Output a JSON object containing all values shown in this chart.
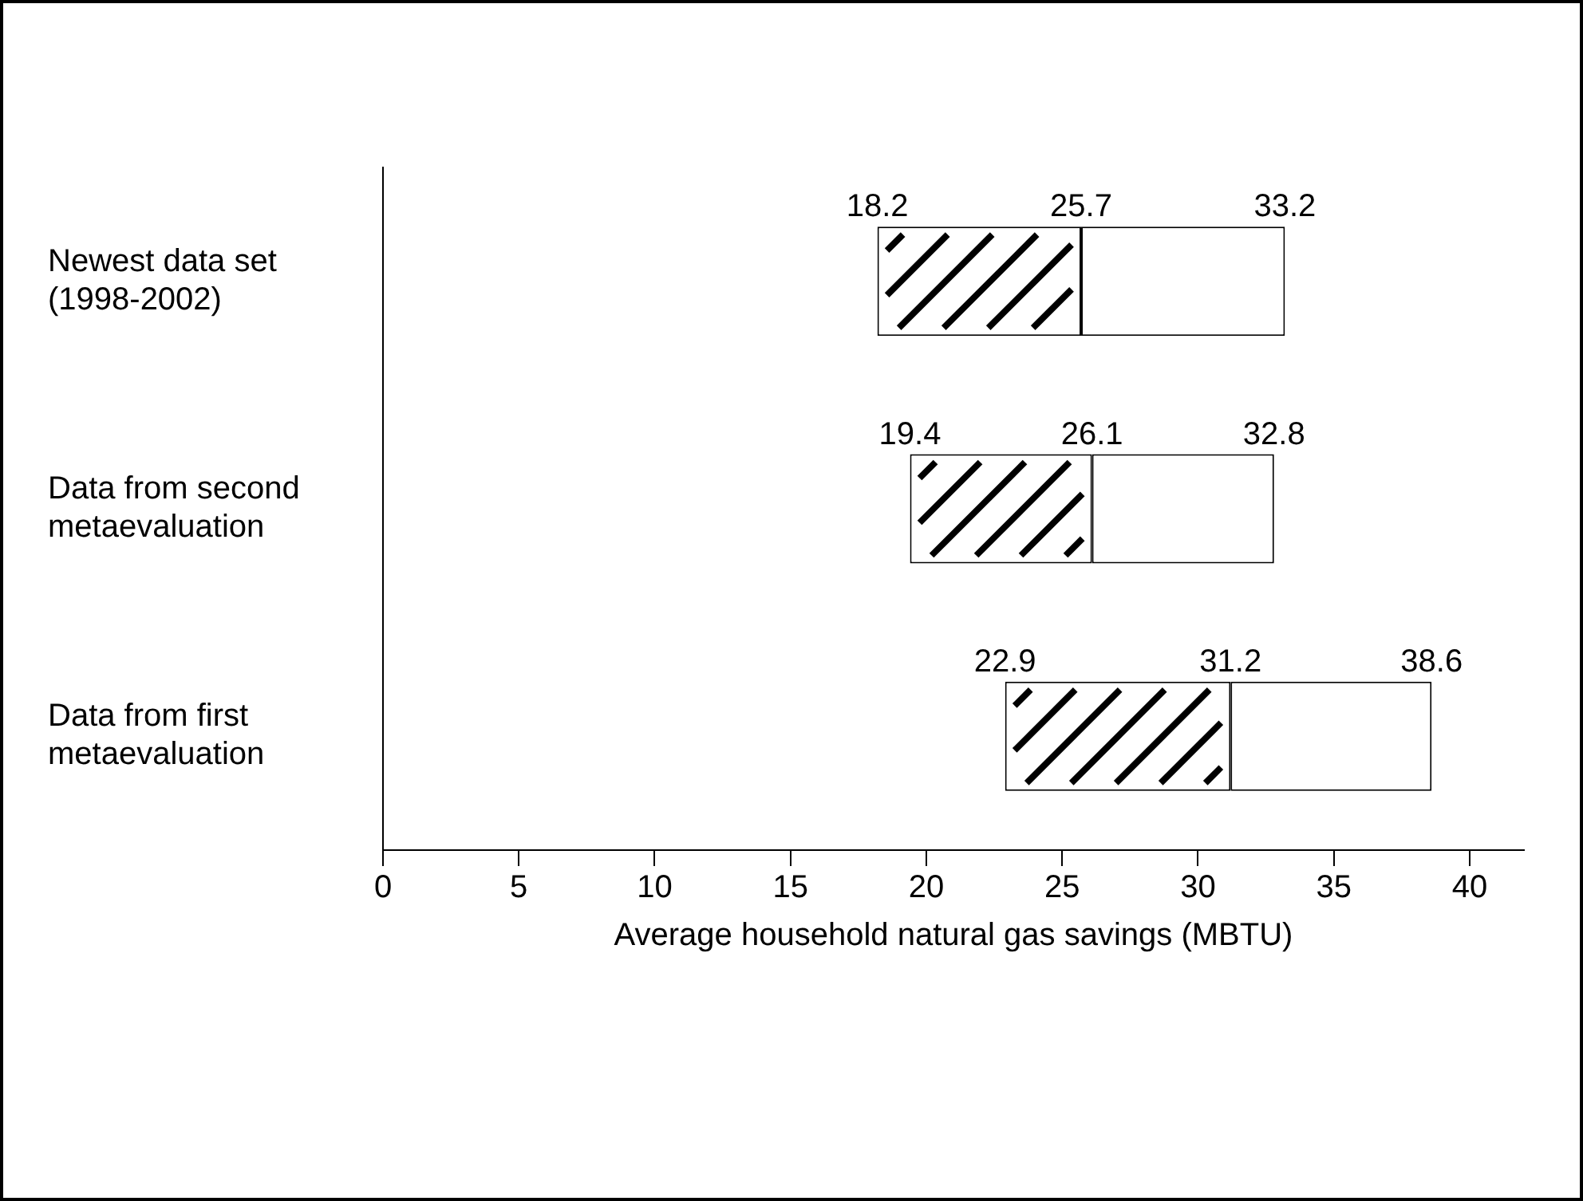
{
  "chart_data": {
    "type": "bar",
    "orientation": "horizontal",
    "xlabel": "Average household natural gas savings (MBTU)",
    "categories": [
      "Newest data set (1998-2002)",
      "Data from second metaevaluation",
      "Data from first metaevaluation"
    ],
    "series": [
      {
        "color": "#ffffff",
        "base": [
          18.2,
          19.4,
          22.9
        ],
        "values": [
          7.5,
          6.7,
          8.3
        ]
      },
      {
        "color": "#ffffff",
        "base": [
          25.7,
          26.1,
          31.2
        ],
        "values": [
          7.5,
          6.7,
          7.4
        ]
      }
    ],
    "xlim": [
      0,
      42
    ],
    "xticks": [
      0,
      5,
      10,
      15,
      20,
      25,
      30,
      35,
      40
    ],
    "grid": false,
    "legend": false,
    "annotations": [
      {
        "text": "18.2",
        "x": 18.2,
        "y": "Newest data set (1998-2002)"
      },
      {
        "text": "25.7",
        "x": 25.7,
        "y": "Newest data set (1998-2002)"
      },
      {
        "text": "33.2",
        "x": 33.2,
        "y": "Newest data set (1998-2002)"
      },
      {
        "text": "19.4",
        "x": 19.4,
        "y": "Data from second metaevaluation"
      },
      {
        "text": "26.1",
        "x": 26.1,
        "y": "Data from second metaevaluation"
      },
      {
        "text": "32.8",
        "x": 32.8,
        "y": "Data from second metaevaluation"
      },
      {
        "text": "22.9",
        "x": 22.9,
        "y": "Data from first metaevaluation"
      },
      {
        "text": "31.2",
        "x": 31.2,
        "y": "Data from first metaevaluation"
      },
      {
        "text": "38.6",
        "x": 38.6,
        "y": "Data from first metaevaluation"
      }
    ]
  }
}
